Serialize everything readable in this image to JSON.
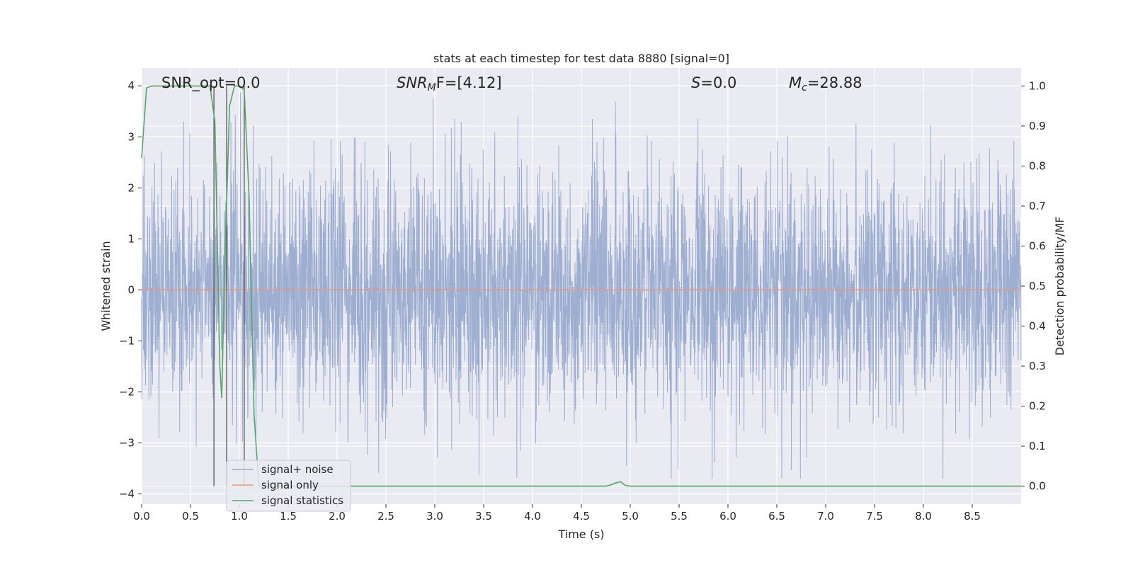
{
  "chart_data": {
    "type": "line",
    "title": "stats at each timestep for test data 8880 [signal=0]",
    "xlabel": "Time (s)",
    "ylabel": "Whitened strain",
    "ylabel_right": "Detection probability/MF",
    "xlim": [
      0,
      9
    ],
    "ylim": [
      -4.2,
      4.35
    ],
    "ylim_right": [
      -0.045,
      1.045
    ],
    "x_ticks": [
      "0.0",
      "0.5",
      "1.0",
      "1.5",
      "2.0",
      "2.5",
      "3.0",
      "3.5",
      "4.0",
      "4.5",
      "5.0",
      "5.5",
      "6.0",
      "6.5",
      "7.0",
      "7.5",
      "8.0",
      "8.5"
    ],
    "y_ticks": [
      "−4",
      "−3",
      "−2",
      "−1",
      "0",
      "1",
      "2",
      "3",
      "4"
    ],
    "y_ticks_right": [
      "0.0",
      "0.1",
      "0.2",
      "0.3",
      "0.4",
      "0.5",
      "0.6",
      "0.7",
      "0.8",
      "0.9",
      "1.0"
    ],
    "grid": true,
    "legend_position": "lower-left",
    "annotations": {
      "snr_opt": "SNR_opt=0.0",
      "snr_mf_name": "SNR",
      "snr_mf_sub": "M",
      "snr_mf_rest": "F=[4.12]",
      "s_name": "S",
      "s_rest": "=0.0",
      "mc_name": "M",
      "mc_sub": "c",
      "mc_rest": "=28.88"
    },
    "series": [
      {
        "name": "signal+ noise",
        "color": "#9aabcf",
        "description_values": "dense whitened noise, roughly symmetric, peaks ~ +4.0 / -3.7"
      },
      {
        "name": "signal only",
        "color": "#e8997d",
        "values_constant": 0.0
      },
      {
        "name": "signal statistics",
        "color": "#55a868",
        "axis": "right",
        "x": [
          0.0,
          0.05,
          0.1,
          0.2,
          0.3,
          0.4,
          0.5,
          0.6,
          0.7,
          0.75,
          0.8,
          0.82,
          0.85,
          0.9,
          0.95,
          1.0,
          1.05,
          1.1,
          1.15,
          1.2,
          1.3,
          1.5,
          2.0,
          2.5,
          3.0,
          3.5,
          4.0,
          4.5,
          4.75,
          4.8,
          4.85,
          4.9,
          4.95,
          5.0,
          5.5,
          6.0,
          6.5,
          7.0,
          7.5,
          8.0,
          8.5,
          9.0
        ],
        "y": [
          0.82,
          0.995,
          1.0,
          1.0,
          1.0,
          1.0,
          1.0,
          1.0,
          1.0,
          0.91,
          0.3,
          0.22,
          0.55,
          0.95,
          1.0,
          1.0,
          0.99,
          0.72,
          0.18,
          0.0,
          0.0,
          0.0,
          0.0,
          0.0,
          0.0,
          0.0,
          0.0,
          0.0,
          0.0,
          0.003,
          0.008,
          0.011,
          0.002,
          0.0,
          0.0,
          0.0,
          0.0,
          0.0,
          0.0,
          0.0,
          0.0,
          0.0
        ]
      }
    ],
    "vertical_markers_x": [
      0.74,
      0.87,
      1.05
    ]
  },
  "colors": {
    "plot_bg": "#eaeaf2",
    "grid": "#ffffff",
    "marker": "#555555"
  }
}
